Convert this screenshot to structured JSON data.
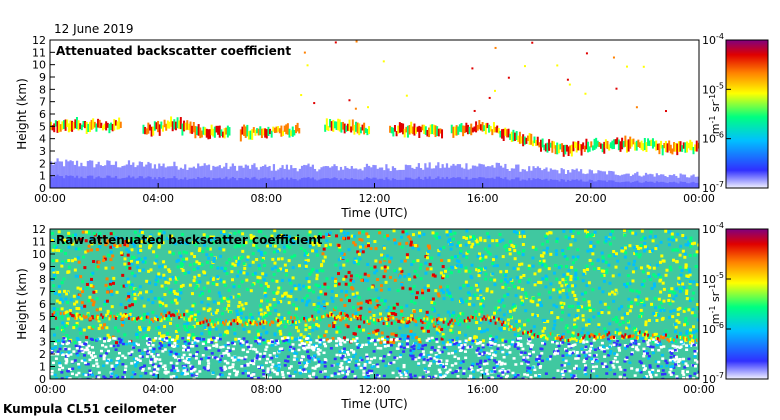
{
  "header": {
    "date": "12 June 2019"
  },
  "footer": {
    "site_label": "Kumpula CL51 ceilometer"
  },
  "chart_data": [
    {
      "type": "heatmap",
      "title": "Attenuated backscatter coefficient",
      "xlabel": "Time (UTC)",
      "ylabel": "Height (km)",
      "xlim": [
        0,
        24
      ],
      "ylim": [
        0,
        12
      ],
      "x_ticks": [
        "00:00",
        "04:00",
        "08:00",
        "12:00",
        "16:00",
        "20:00",
        "00:00"
      ],
      "x_tick_hours": [
        0,
        4,
        8,
        12,
        16,
        20,
        24
      ],
      "y_ticks": [
        0,
        1,
        2,
        3,
        4,
        5,
        6,
        7,
        8,
        9,
        10,
        11,
        12
      ],
      "colorbar": {
        "scale": "log",
        "range": [
          1e-07,
          0.0001
        ],
        "tick_labels": [
          {
            "base": "10",
            "exp": "-4"
          },
          {
            "base": "10",
            "exp": "-5"
          },
          {
            "base": "10",
            "exp": "-6"
          },
          {
            "base": "10",
            "exp": "-7"
          }
        ],
        "label": "m",
        "label_exp1": "-1",
        "label_mid": " sr",
        "label_exp2": "-1",
        "colors": [
          "#f2f2ff",
          "#3030ff",
          "#00c0ff",
          "#00ff80",
          "#ffff00",
          "#ff8000",
          "#e00000",
          "#800080"
        ]
      },
      "features": {
        "cloud_layer": [
          [
            0,
            5.1
          ],
          [
            1.5,
            5.0
          ],
          [
            2.5,
            5.1
          ],
          [
            3.6,
            4.7
          ],
          [
            4.5,
            5.2
          ],
          [
            5.5,
            4.6
          ],
          [
            7,
            4.5
          ],
          [
            8.5,
            4.6
          ],
          [
            10.5,
            5.1
          ],
          [
            12,
            4.6
          ],
          [
            13.5,
            4.7
          ],
          [
            15,
            4.6
          ],
          [
            16,
            5.0
          ],
          [
            17,
            4.2
          ],
          [
            18,
            3.6
          ],
          [
            19,
            3.2
          ],
          [
            20,
            3.4
          ],
          [
            21,
            3.6
          ],
          [
            22,
            3.5
          ],
          [
            23,
            3.2
          ],
          [
            24,
            3.3
          ]
        ],
        "cloud_gaps": [
          [
            2.6,
            3.4
          ],
          [
            6.6,
            7.0
          ],
          [
            9.2,
            10.1
          ],
          [
            11.8,
            12.5
          ],
          [
            14.5,
            14.8
          ]
        ],
        "boundary_layer_top": [
          [
            0,
            2.2
          ],
          [
            4,
            2.0
          ],
          [
            8,
            1.8
          ],
          [
            12,
            1.8
          ],
          [
            16,
            2.0
          ],
          [
            18,
            1.6
          ],
          [
            20,
            1.4
          ],
          [
            24,
            1.0
          ]
        ]
      }
    },
    {
      "type": "heatmap",
      "title": "Raw attenuated backscatter coefficient",
      "xlabel": "Time (UTC)",
      "ylabel": "Height (km)",
      "xlim": [
        0,
        24
      ],
      "ylim": [
        0,
        12
      ],
      "x_ticks": [
        "00:00",
        "04:00",
        "08:00",
        "12:00",
        "16:00",
        "20:00",
        "00:00"
      ],
      "x_tick_hours": [
        0,
        4,
        8,
        12,
        16,
        20,
        24
      ],
      "y_ticks": [
        0,
        1,
        2,
        3,
        4,
        5,
        6,
        7,
        8,
        9,
        10,
        11,
        12
      ],
      "colorbar": {
        "scale": "log",
        "range": [
          1e-07,
          0.0001
        ],
        "tick_labels": [
          {
            "base": "10",
            "exp": "-4"
          },
          {
            "base": "10",
            "exp": "-5"
          },
          {
            "base": "10",
            "exp": "-6"
          },
          {
            "base": "10",
            "exp": "-7"
          }
        ],
        "label": "m",
        "label_exp1": "-1",
        "label_mid": " sr",
        "label_exp2": "-1",
        "colors": [
          "#f2f2ff",
          "#3030ff",
          "#00c0ff",
          "#00ff80",
          "#ffff00",
          "#ff8000",
          "#e00000",
          "#800080"
        ]
      },
      "features": {
        "cloud_layer": [
          [
            0,
            5.1
          ],
          [
            1.5,
            5.0
          ],
          [
            2.5,
            5.1
          ],
          [
            3.6,
            4.7
          ],
          [
            4.5,
            5.2
          ],
          [
            5.5,
            4.6
          ],
          [
            7,
            4.5
          ],
          [
            8.5,
            4.6
          ],
          [
            10.5,
            5.1
          ],
          [
            12,
            4.6
          ],
          [
            13.5,
            4.7
          ],
          [
            15,
            4.6
          ],
          [
            16,
            5.0
          ],
          [
            17,
            4.2
          ],
          [
            18,
            3.6
          ],
          [
            19,
            3.2
          ],
          [
            20,
            3.4
          ],
          [
            21,
            3.6
          ],
          [
            22,
            3.5
          ],
          [
            23,
            3.2
          ],
          [
            24,
            3.3
          ]
        ],
        "noise_background": true
      }
    }
  ]
}
